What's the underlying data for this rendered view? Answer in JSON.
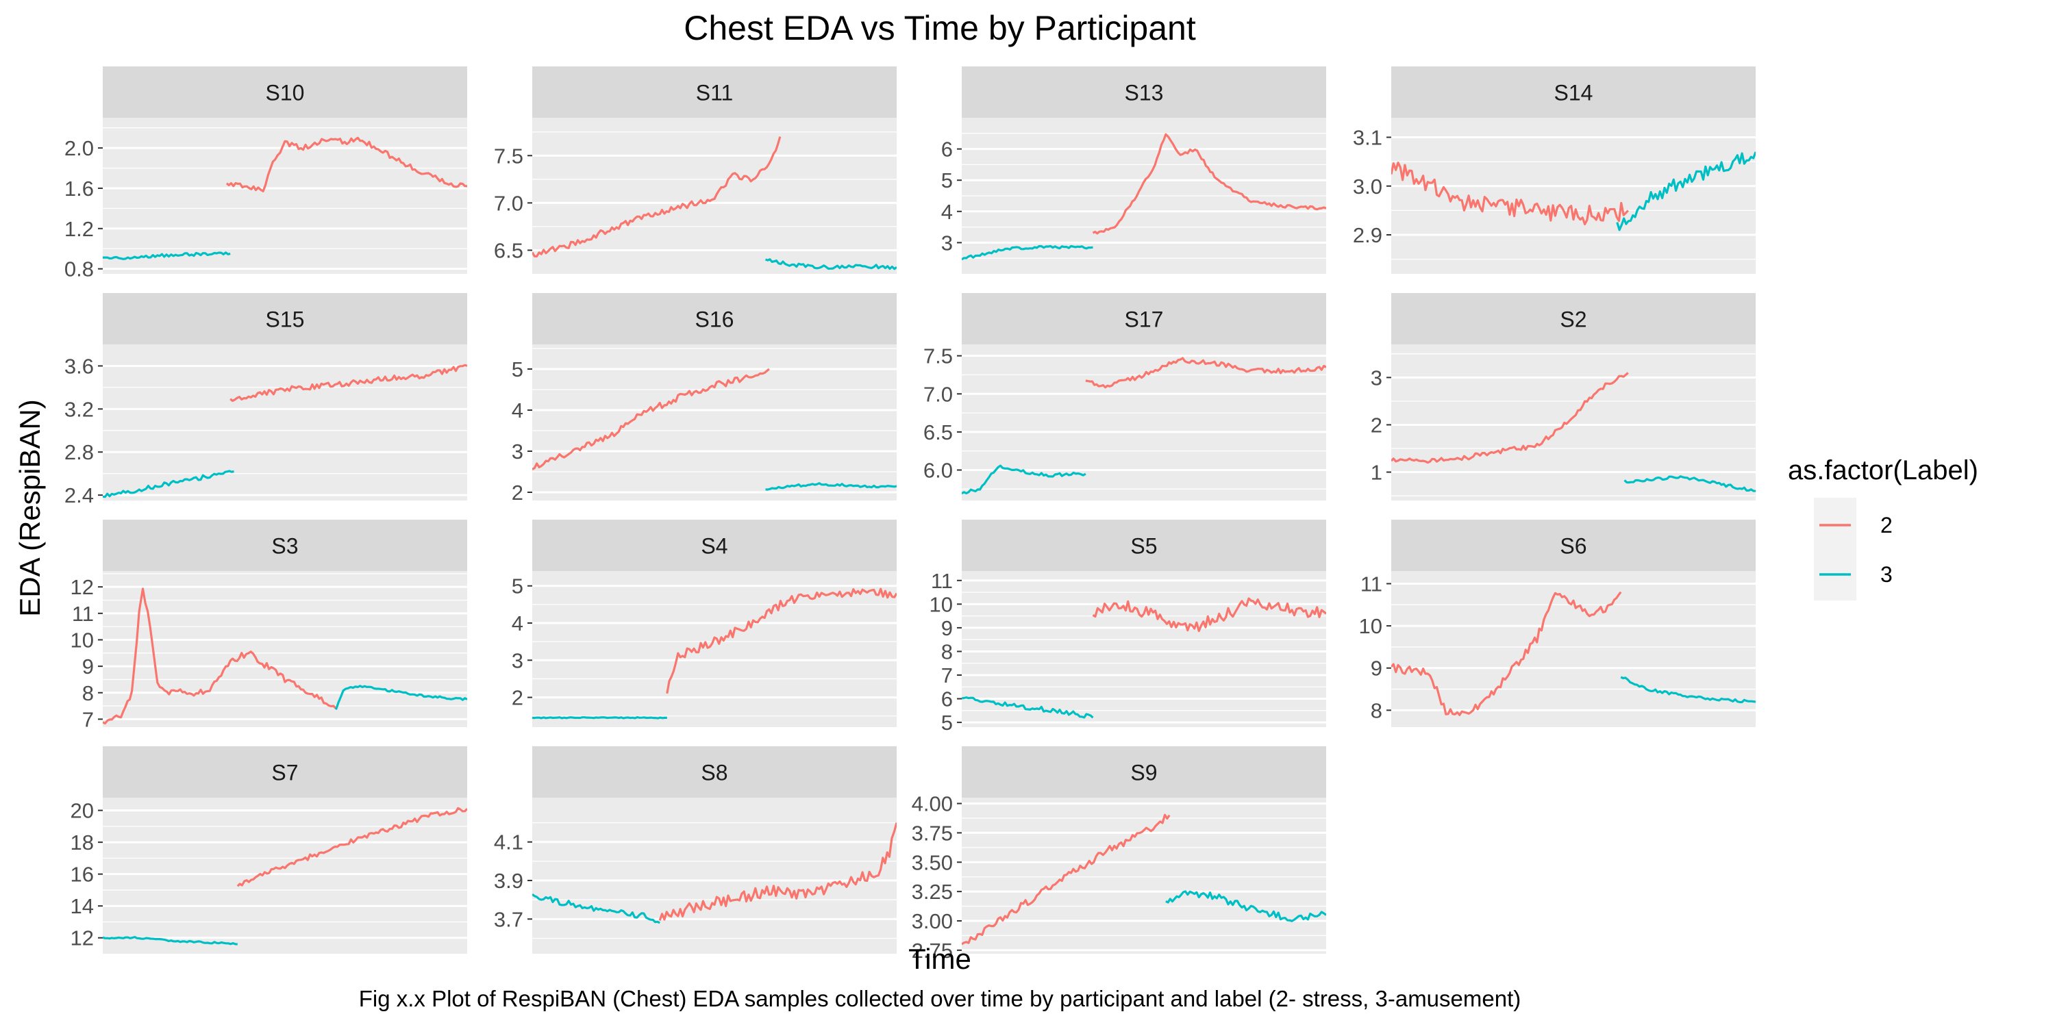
{
  "chart_data": {
    "type": "line",
    "title": "Chest EDA vs Time by Participant",
    "xlabel": "Time",
    "ylabel": "EDA (RespiBAN)",
    "caption": "Fig x.x Plot of RespiBAN (Chest) EDA samples collected over time by participant and label (2- stress, 3-amusement)",
    "grid": true,
    "legend": {
      "title": "as.factor(Label)",
      "placement": "right",
      "entries": [
        {
          "label": "2",
          "color": "#F8766D"
        },
        {
          "label": "3",
          "color": "#00BFC4"
        }
      ]
    },
    "x_axis_ticks_shown": false,
    "x_range": [
      0,
      100
    ],
    "panels": [
      {
        "name": "S10",
        "ylim": [
          0.75,
          2.3
        ],
        "yticks": [
          0.8,
          1.2,
          1.6,
          2.0
        ],
        "ytick_labels": [
          "0.8",
          "1.2",
          "1.6",
          "2.0"
        ],
        "series": [
          {
            "label": "3",
            "noise": 0.015,
            "x": [
              0,
              15,
              30,
              35
            ],
            "y": [
              0.9,
              0.93,
              0.95,
              0.95
            ]
          },
          {
            "label": "2",
            "noise": 0.025,
            "x": [
              34,
              42,
              44,
              46,
              50,
              55,
              62,
              67,
              70,
              75,
              85,
              95,
              100
            ],
            "y": [
              1.65,
              1.6,
              1.55,
              1.8,
              2.05,
              2.0,
              2.1,
              2.05,
              2.1,
              2.0,
              1.8,
              1.65,
              1.62
            ]
          }
        ]
      },
      {
        "name": "S11",
        "ylim": [
          6.25,
          7.9
        ],
        "yticks": [
          6.5,
          7.0,
          7.5
        ],
        "ytick_labels": [
          "6.5",
          "7.0",
          "7.5"
        ],
        "series": [
          {
            "label": "2",
            "noise": 0.03,
            "x": [
              0,
              10,
              20,
              30,
              40,
              50,
              55,
              60,
              65,
              68
            ],
            "y": [
              6.45,
              6.55,
              6.7,
              6.85,
              6.95,
              7.05,
              7.3,
              7.25,
              7.4,
              7.7
            ]
          },
          {
            "label": "3",
            "noise": 0.02,
            "x": [
              64,
              70,
              80,
              90,
              100
            ],
            "y": [
              6.4,
              6.35,
              6.32,
              6.33,
              6.32
            ]
          }
        ]
      },
      {
        "name": "S13",
        "ylim": [
          2.0,
          7.0
        ],
        "yticks": [
          3,
          4,
          5,
          6
        ],
        "ytick_labels": [
          "3",
          "4",
          "5",
          "6"
        ],
        "series": [
          {
            "label": "3",
            "noise": 0.04,
            "x": [
              0,
              5,
              12,
              20,
              30,
              36
            ],
            "y": [
              2.5,
              2.6,
              2.8,
              2.85,
              2.85,
              2.85
            ]
          },
          {
            "label": "2",
            "noise": 0.05,
            "x": [
              36,
              42,
              48,
              53,
              56,
              60,
              64,
              70,
              80,
              90,
              100
            ],
            "y": [
              3.3,
              3.5,
              4.5,
              5.5,
              6.5,
              5.8,
              6.0,
              5.0,
              4.3,
              4.15,
              4.1
            ]
          }
        ]
      },
      {
        "name": "S14",
        "ylim": [
          2.82,
          3.14
        ],
        "yticks": [
          2.9,
          3.0,
          3.1
        ],
        "ytick_labels": [
          "2.9",
          "3.0",
          "3.1"
        ],
        "series": [
          {
            "label": "2",
            "noise": 0.02,
            "x": [
              0,
              10,
              20,
              30,
              40,
              50,
              60,
              65
            ],
            "y": [
              3.04,
              3.0,
              2.97,
              2.96,
              2.95,
              2.94,
              2.94,
              2.95
            ]
          },
          {
            "label": "3",
            "noise": 0.015,
            "x": [
              62,
              70,
              80,
              90,
              100
            ],
            "y": [
              2.92,
              2.97,
              3.01,
              3.04,
              3.07
            ]
          }
        ]
      },
      {
        "name": "S15",
        "ylim": [
          2.35,
          3.8
        ],
        "yticks": [
          2.4,
          2.8,
          3.2,
          3.6
        ],
        "ytick_labels": [
          "2.4",
          "2.8",
          "3.2",
          "3.6"
        ],
        "series": [
          {
            "label": "3",
            "noise": 0.02,
            "x": [
              0,
              10,
              20,
              30,
              36
            ],
            "y": [
              2.4,
              2.45,
              2.52,
              2.58,
              2.62
            ]
          },
          {
            "label": "2",
            "noise": 0.025,
            "x": [
              35,
              50,
              70,
              90,
              100
            ],
            "y": [
              3.28,
              3.38,
              3.45,
              3.52,
              3.6
            ]
          }
        ]
      },
      {
        "name": "S16",
        "ylim": [
          1.8,
          5.6
        ],
        "yticks": [
          2,
          3,
          4,
          5
        ],
        "ytick_labels": [
          "2",
          "3",
          "4",
          "5"
        ],
        "series": [
          {
            "label": "2",
            "noise": 0.08,
            "x": [
              0,
              10,
              20,
              30,
              40,
              50,
              55,
              60,
              65
            ],
            "y": [
              2.6,
              2.95,
              3.3,
              3.9,
              4.3,
              4.6,
              4.7,
              4.8,
              5.0
            ]
          },
          {
            "label": "3",
            "noise": 0.03,
            "x": [
              64,
              70,
              80,
              90,
              100
            ],
            "y": [
              2.05,
              2.15,
              2.2,
              2.15,
              2.15
            ]
          }
        ]
      },
      {
        "name": "S17",
        "ylim": [
          5.6,
          7.65
        ],
        "yticks": [
          6.0,
          6.5,
          7.0,
          7.5
        ],
        "ytick_labels": [
          "6.0",
          "6.5",
          "7.0",
          "7.5"
        ],
        "series": [
          {
            "label": "3",
            "noise": 0.02,
            "x": [
              0,
              5,
              10,
              15,
              20,
              25,
              30,
              34
            ],
            "y": [
              5.7,
              5.75,
              6.05,
              6.0,
              5.95,
              5.93,
              5.95,
              5.95
            ]
          },
          {
            "label": "2",
            "noise": 0.03,
            "x": [
              34,
              40,
              50,
              60,
              70,
              80,
              90,
              100
            ],
            "y": [
              7.15,
              7.1,
              7.25,
              7.45,
              7.4,
              7.3,
              7.3,
              7.35
            ]
          }
        ]
      },
      {
        "name": "S2",
        "ylim": [
          0.4,
          3.7
        ],
        "yticks": [
          1,
          2,
          3
        ],
        "ytick_labels": [
          "1",
          "2",
          "3"
        ],
        "series": [
          {
            "label": "2",
            "noise": 0.05,
            "x": [
              0,
              10,
              20,
              30,
              40,
              45,
              50,
              55,
              60,
              65
            ],
            "y": [
              1.25,
              1.25,
              1.3,
              1.45,
              1.55,
              1.85,
              2.2,
              2.6,
              2.9,
              3.1
            ]
          },
          {
            "label": "3",
            "noise": 0.03,
            "x": [
              64,
              72,
              80,
              90,
              100
            ],
            "y": [
              0.8,
              0.85,
              0.9,
              0.75,
              0.6
            ]
          }
        ]
      },
      {
        "name": "S3",
        "ylim": [
          6.7,
          12.6
        ],
        "yticks": [
          7,
          8,
          9,
          10,
          11,
          12
        ],
        "ytick_labels": [
          "7",
          "8",
          "9",
          "10",
          "11",
          "12"
        ],
        "series": [
          {
            "label": "2",
            "noise": 0.12,
            "x": [
              0,
              5,
              8,
              10,
              11,
              13,
              15,
              17,
              20,
              25,
              30,
              35,
              40,
              50,
              60,
              64
            ],
            "y": [
              6.9,
              7.1,
              8.0,
              11.0,
              12.0,
              10.5,
              8.5,
              8.0,
              8.1,
              7.9,
              8.2,
              9.2,
              9.5,
              8.5,
              7.7,
              7.4
            ]
          },
          {
            "label": "3",
            "noise": 0.04,
            "x": [
              64,
              66,
              70,
              80,
              90,
              100
            ],
            "y": [
              7.4,
              8.1,
              8.25,
              8.05,
              7.85,
              7.75
            ]
          }
        ]
      },
      {
        "name": "S4",
        "ylim": [
          1.2,
          5.4
        ],
        "yticks": [
          2,
          3,
          4,
          5
        ],
        "ytick_labels": [
          "2",
          "3",
          "4",
          "5"
        ],
        "series": [
          {
            "label": "3",
            "noise": 0.015,
            "x": [
              0,
              20,
              37
            ],
            "y": [
              1.45,
              1.45,
              1.45
            ]
          },
          {
            "label": "2",
            "noise": 0.12,
            "x": [
              37,
              40,
              50,
              60,
              70,
              80,
              90,
              100
            ],
            "y": [
              2.2,
              3.1,
              3.5,
              3.95,
              4.6,
              4.75,
              4.8,
              4.8
            ]
          }
        ]
      },
      {
        "name": "S5",
        "ylim": [
          4.8,
          11.4
        ],
        "yticks": [
          5,
          6,
          7,
          8,
          9,
          10,
          11
        ],
        "ytick_labels": [
          "5",
          "6",
          "7",
          "8",
          "9",
          "10",
          "11"
        ],
        "series": [
          {
            "label": "3",
            "noise": 0.1,
            "x": [
              0,
              10,
              20,
              30,
              36
            ],
            "y": [
              6.0,
              5.8,
              5.6,
              5.4,
              5.2
            ]
          },
          {
            "label": "2",
            "noise": 0.25,
            "x": [
              36,
              45,
              55,
              62,
              70,
              80,
              90,
              100
            ],
            "y": [
              9.7,
              9.9,
              9.5,
              8.9,
              9.4,
              10.1,
              9.8,
              9.6
            ]
          }
        ]
      },
      {
        "name": "S6",
        "ylim": [
          7.6,
          11.3
        ],
        "yticks": [
          8,
          9,
          10,
          11
        ],
        "ytick_labels": [
          "8",
          "9",
          "10",
          "11"
        ],
        "series": [
          {
            "label": "2",
            "noise": 0.1,
            "x": [
              0,
              10,
              15,
              20,
              25,
              30,
              40,
              45,
              50,
              55,
              60,
              63
            ],
            "y": [
              9.0,
              8.9,
              8.0,
              7.9,
              8.2,
              8.6,
              9.7,
              10.8,
              10.5,
              10.2,
              10.5,
              10.8
            ]
          },
          {
            "label": "3",
            "noise": 0.03,
            "x": [
              63,
              70,
              80,
              90,
              100
            ],
            "y": [
              8.8,
              8.5,
              8.35,
              8.25,
              8.2
            ]
          }
        ]
      },
      {
        "name": "S7",
        "ylim": [
          11.0,
          20.8
        ],
        "yticks": [
          12,
          14,
          16,
          18,
          20
        ],
        "ytick_labels": [
          "12",
          "14",
          "16",
          "18",
          "20"
        ],
        "series": [
          {
            "label": "3",
            "noise": 0.05,
            "x": [
              0,
              10,
              20,
              30,
              37
            ],
            "y": [
              12.0,
              12.0,
              11.8,
              11.7,
              11.6
            ]
          },
          {
            "label": "2",
            "noise": 0.15,
            "x": [
              37,
              50,
              70,
              90,
              100
            ],
            "y": [
              15.3,
              16.5,
              18.2,
              19.7,
              20.1
            ]
          }
        ]
      },
      {
        "name": "S8",
        "ylim": [
          3.52,
          4.33
        ],
        "yticks": [
          3.7,
          3.9,
          4.1
        ],
        "ytick_labels": [
          "3.7",
          "3.9",
          "4.1"
        ],
        "series": [
          {
            "label": "3",
            "noise": 0.015,
            "x": [
              0,
              10,
              20,
              30,
              35
            ],
            "y": [
              3.82,
              3.78,
              3.74,
              3.72,
              3.68
            ]
          },
          {
            "label": "2",
            "noise": 0.03,
            "x": [
              35,
              45,
              55,
              65,
              75,
              85,
              95,
              98,
              100
            ],
            "y": [
              3.7,
              3.77,
              3.8,
              3.85,
              3.82,
              3.88,
              3.95,
              4.05,
              4.2
            ]
          }
        ]
      },
      {
        "name": "S9",
        "ylim": [
          2.72,
          4.05
        ],
        "yticks": [
          2.75,
          3.0,
          3.25,
          3.5,
          3.75,
          4.0
        ],
        "ytick_labels": [
          "2.75",
          "3.00",
          "3.25",
          "3.50",
          "3.75",
          "4.00"
        ],
        "series": [
          {
            "label": "2",
            "noise": 0.03,
            "x": [
              0,
              10,
              20,
              30,
              40,
              50,
              57
            ],
            "y": [
              2.78,
              3.0,
              3.2,
              3.4,
              3.6,
              3.75,
              3.9
            ]
          },
          {
            "label": "3",
            "noise": 0.03,
            "x": [
              56,
              62,
              70,
              80,
              90,
              100
            ],
            "y": [
              3.17,
              3.25,
              3.2,
              3.1,
              3.02,
              3.05
            ]
          }
        ]
      }
    ]
  }
}
